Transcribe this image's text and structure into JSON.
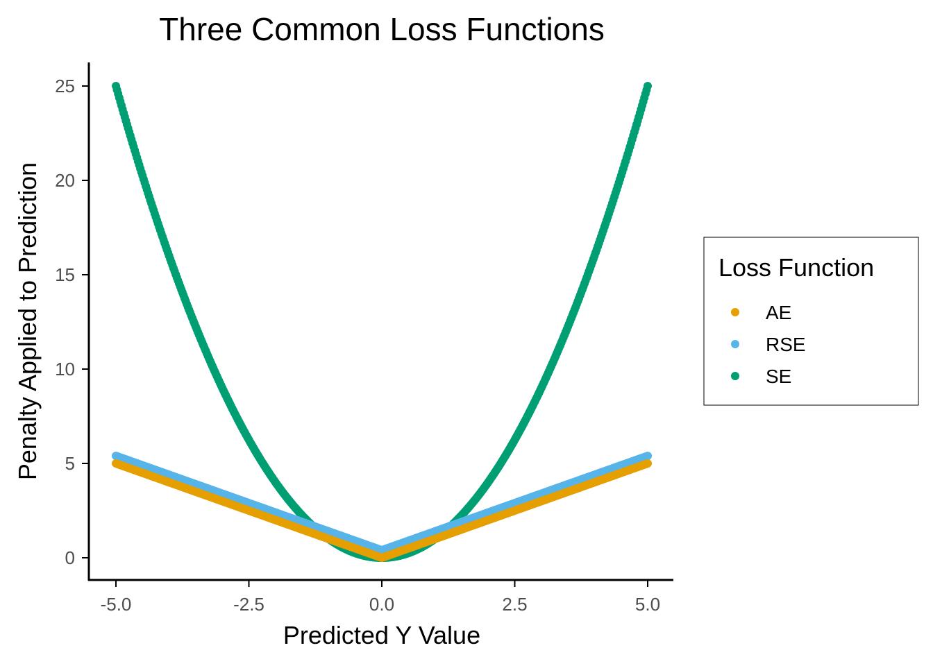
{
  "chart_data": {
    "type": "scatter",
    "title": "Three Common Loss Functions",
    "xlabel": "Predicted Y Value",
    "ylabel": "Penalty Applied to Prediction",
    "xlim": [
      -5.0,
      5.0
    ],
    "ylim": [
      0,
      25
    ],
    "x_ticks": [
      "-5.0",
      "-2.5",
      "0.0",
      "2.5",
      "5.0"
    ],
    "x_tick_values": [
      -5.0,
      -2.5,
      0.0,
      2.5,
      5.0
    ],
    "y_ticks": [
      "0",
      "5",
      "10",
      "15",
      "20",
      "25"
    ],
    "y_tick_values": [
      0,
      5,
      10,
      15,
      20,
      25
    ],
    "grid": false,
    "legend": {
      "title": "Loss Function",
      "position": "right"
    },
    "series": [
      {
        "name": "AE",
        "color": "#E69F00",
        "x": [
          -5.0,
          -4.5,
          -4.0,
          -3.5,
          -3.0,
          -2.5,
          -2.0,
          -1.5,
          -1.0,
          -0.5,
          0.0,
          0.5,
          1.0,
          1.5,
          2.0,
          2.5,
          3.0,
          3.5,
          4.0,
          4.5,
          5.0
        ],
        "y": [
          5.0,
          4.5,
          4.0,
          3.5,
          3.0,
          2.5,
          2.0,
          1.5,
          1.0,
          0.5,
          0.0,
          0.5,
          1.0,
          1.5,
          2.0,
          2.5,
          3.0,
          3.5,
          4.0,
          4.5,
          5.0
        ]
      },
      {
        "name": "RSE",
        "color": "#56B4E9",
        "x": [
          -5.0,
          -4.5,
          -4.0,
          -3.5,
          -3.0,
          -2.5,
          -2.0,
          -1.5,
          -1.0,
          -0.5,
          0.0,
          0.5,
          1.0,
          1.5,
          2.0,
          2.5,
          3.0,
          3.5,
          4.0,
          4.5,
          5.0
        ],
        "y": [
          5.4,
          4.9,
          4.4,
          3.9,
          3.4,
          2.9,
          2.4,
          1.9,
          1.4,
          0.9,
          0.4,
          0.9,
          1.4,
          1.9,
          2.4,
          2.9,
          3.4,
          3.9,
          4.4,
          4.9,
          5.4
        ]
      },
      {
        "name": "SE",
        "color": "#009E73",
        "x": [
          -5.0,
          -4.5,
          -4.0,
          -3.5,
          -3.0,
          -2.5,
          -2.0,
          -1.5,
          -1.0,
          -0.5,
          0.0,
          0.5,
          1.0,
          1.5,
          2.0,
          2.5,
          3.0,
          3.5,
          4.0,
          4.5,
          5.0
        ],
        "y": [
          25.0,
          20.25,
          16.0,
          12.25,
          9.0,
          6.25,
          4.0,
          2.25,
          1.0,
          0.25,
          0.0,
          0.25,
          1.0,
          2.25,
          4.0,
          6.25,
          9.0,
          12.25,
          16.0,
          20.25,
          25.0
        ]
      }
    ]
  }
}
